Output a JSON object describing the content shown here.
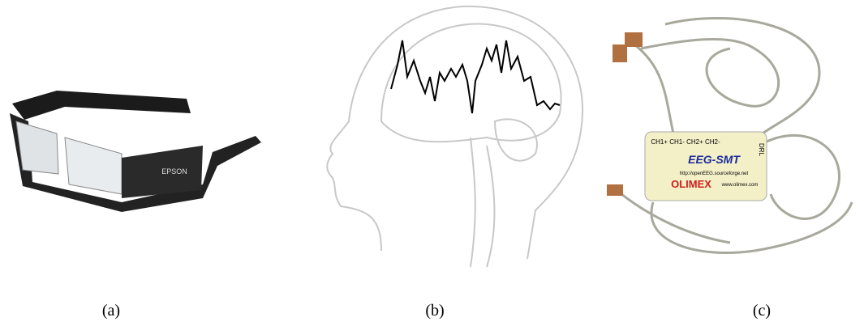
{
  "panels": [
    {
      "caption": "(a)",
      "texts": [
        "EPSON"
      ]
    },
    {
      "caption": "(b)",
      "texts": []
    },
    {
      "caption": "(c)",
      "texts": [
        "CH1+  CH1-  CH2+  CH2-",
        "EEG-SMT",
        "http://openEEG.sourceforge.net",
        "OLIMEX",
        "www.olimex.com",
        "DRL"
      ]
    }
  ]
}
